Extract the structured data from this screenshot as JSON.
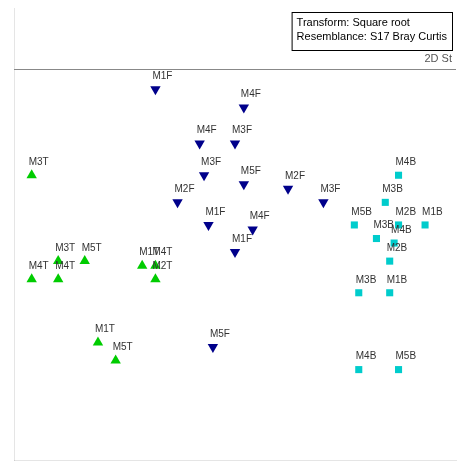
{
  "chart_data": {
    "type": "scatter",
    "annotations": [
      "Transform: Square root\nResemblance: S17 Bray Curtis",
      "2D St"
    ],
    "xlim": [
      0,
      1
    ],
    "ylim": [
      0,
      1
    ],
    "tick_labels": false,
    "grid": false,
    "series": [
      {
        "color": "#00008B",
        "marker": "triangle_down",
        "labels": [
          "M1F",
          "M4F",
          "M4F",
          "M3F",
          "M3F",
          "M5F",
          "M2F",
          "M1F",
          "M4F",
          "M1F",
          "M2F",
          "M3F",
          "M5F"
        ],
        "x": [
          0.32,
          0.52,
          0.42,
          0.5,
          0.43,
          0.52,
          0.37,
          0.44,
          0.54,
          0.5,
          0.62,
          0.7,
          0.45
        ],
        "y": [
          0.82,
          0.78,
          0.7,
          0.7,
          0.63,
          0.61,
          0.57,
          0.52,
          0.51,
          0.46,
          0.6,
          0.57,
          0.25
        ]
      },
      {
        "color": "#00cc00",
        "marker": "triangle_up",
        "labels": [
          "M3T",
          "M3T",
          "M5T",
          "M4T",
          "M4T",
          "M1T",
          "M4T",
          "M2T",
          "M1T",
          "M5T"
        ],
        "x": [
          0.04,
          0.1,
          0.16,
          0.04,
          0.1,
          0.29,
          0.32,
          0.32,
          0.19,
          0.23
        ],
        "y": [
          0.63,
          0.44,
          0.44,
          0.4,
          0.4,
          0.43,
          0.43,
          0.4,
          0.26,
          0.22
        ]
      },
      {
        "color": "#00cccc",
        "marker": "square",
        "labels": [
          "M4B",
          "M3B",
          "M5B",
          "M2B",
          "M1B",
          "M3B",
          "M4B",
          "M2B",
          "M3B",
          "M1B",
          "M4B",
          "M5B"
        ],
        "x": [
          0.87,
          0.84,
          0.77,
          0.87,
          0.93,
          0.82,
          0.86,
          0.85,
          0.78,
          0.85,
          0.78,
          0.87
        ],
        "y": [
          0.63,
          0.57,
          0.52,
          0.52,
          0.52,
          0.49,
          0.48,
          0.44,
          0.37,
          0.37,
          0.2,
          0.2
        ]
      }
    ]
  }
}
